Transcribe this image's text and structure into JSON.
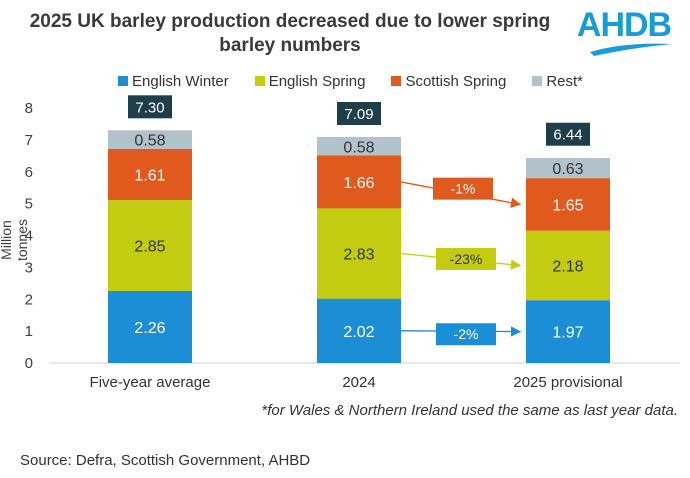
{
  "title_line1": "2025 UK barley production decreased due to lower spring",
  "title_line2": "barley numbers",
  "logo": "AHDB",
  "footnote": "*for Wales & Northern Ireland used the same as last year data.",
  "source": "Source: Defra, Scottish Government, AHBD",
  "colors": {
    "english_winter": "#1c8ed6",
    "english_spring": "#c3cc10",
    "scottish_spring": "#e05a1e",
    "rest": "#b2c2cb",
    "total_box": "#1e3e4a",
    "logo": "#1a9ad6"
  },
  "chart_data": {
    "type": "bar",
    "stacked": true,
    "title": "2025 UK barley production decreased due to lower spring barley numbers",
    "xlabel": "",
    "ylabel": "Million tonnes",
    "ylim": [
      0,
      8
    ],
    "yticks": [
      "0",
      "1",
      "2",
      "3",
      "4",
      "5",
      "6",
      "7",
      "8"
    ],
    "categories": [
      "Five-year average",
      "2024",
      "2025 provisional"
    ],
    "series": [
      {
        "name": "English Winter",
        "key": "english_winter",
        "values": [
          2.26,
          2.02,
          1.97
        ],
        "labels": [
          "2.26",
          "2.02",
          "1.97"
        ]
      },
      {
        "name": "English Spring",
        "key": "english_spring",
        "values": [
          2.85,
          2.83,
          2.18
        ],
        "labels": [
          "2.85",
          "2.83",
          "2.18"
        ]
      },
      {
        "name": "Scottish Spring",
        "key": "scottish_spring",
        "values": [
          1.61,
          1.66,
          1.65
        ],
        "labels": [
          "1.61",
          "1.66",
          "1.65"
        ]
      },
      {
        "name": "Rest*",
        "key": "rest",
        "values": [
          0.58,
          0.58,
          0.63
        ],
        "labels": [
          "0.58",
          "0.58",
          "0.63"
        ]
      }
    ],
    "totals": [
      7.3,
      7.09,
      6.44
    ],
    "total_labels": [
      "7.30",
      "7.09",
      "6.44"
    ],
    "annotations": [
      {
        "text": "-1%",
        "series": "Scottish Spring",
        "from": "2024",
        "to": "2025 provisional"
      },
      {
        "text": "-23%",
        "series": "English Spring",
        "from": "2024",
        "to": "2025 provisional"
      },
      {
        "text": "-2%",
        "series": "English Winter",
        "from": "2024",
        "to": "2025 provisional"
      }
    ]
  }
}
